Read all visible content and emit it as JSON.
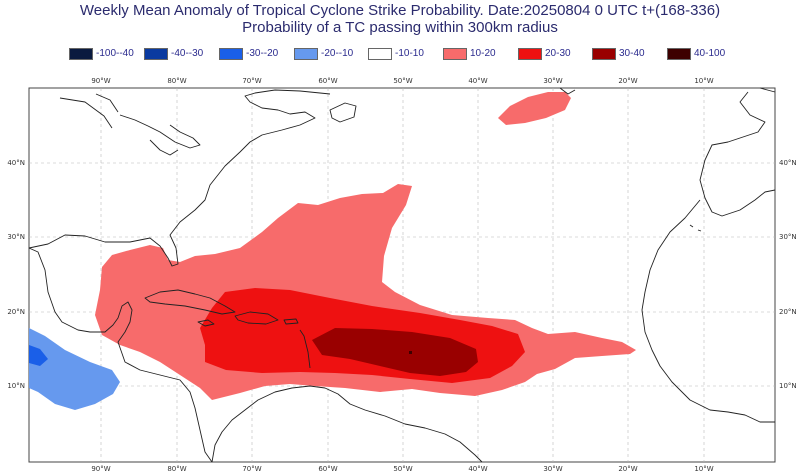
{
  "title": {
    "line1": "Weekly Mean Anomaly of Tropical Cyclone Strike Probability. Date:20250804  0 UTC t+(168-336)",
    "line2": "Probability of a TC passing within  300km radius"
  },
  "legend": [
    {
      "label": "-100--40",
      "color": "#0a1a3f"
    },
    {
      "label": "-40--30",
      "color": "#0a3aa0"
    },
    {
      "label": "-30--20",
      "color": "#1a5fe8"
    },
    {
      "label": "-20--10",
      "color": "#6699ee"
    },
    {
      "label": "-10-10",
      "color": "#ffffff"
    },
    {
      "label": "10-20",
      "color": "#f76b6b"
    },
    {
      "label": "20-30",
      "color": "#ee1111"
    },
    {
      "label": "30-40",
      "color": "#990000"
    },
    {
      "label": "40-100",
      "color": "#3d0000"
    }
  ],
  "axes": {
    "lon_labels": [
      "90°W",
      "80°W",
      "70°W",
      "60°W",
      "50°W",
      "40°W",
      "30°W",
      "20°W",
      "10°W"
    ],
    "lat_labels": [
      "40°N",
      "30°N",
      "20°N",
      "10°N"
    ],
    "lon_range": [
      -99,
      -3
    ],
    "lat_range": [
      1,
      51
    ]
  },
  "map_colors": {
    "coast": "#222222",
    "grid": "#b8b8b8",
    "low": "#f76b6b",
    "mid": "#ee1111",
    "high": "#990000",
    "neg": "#6699ee",
    "neg_dark": "#1a5fe8"
  }
}
